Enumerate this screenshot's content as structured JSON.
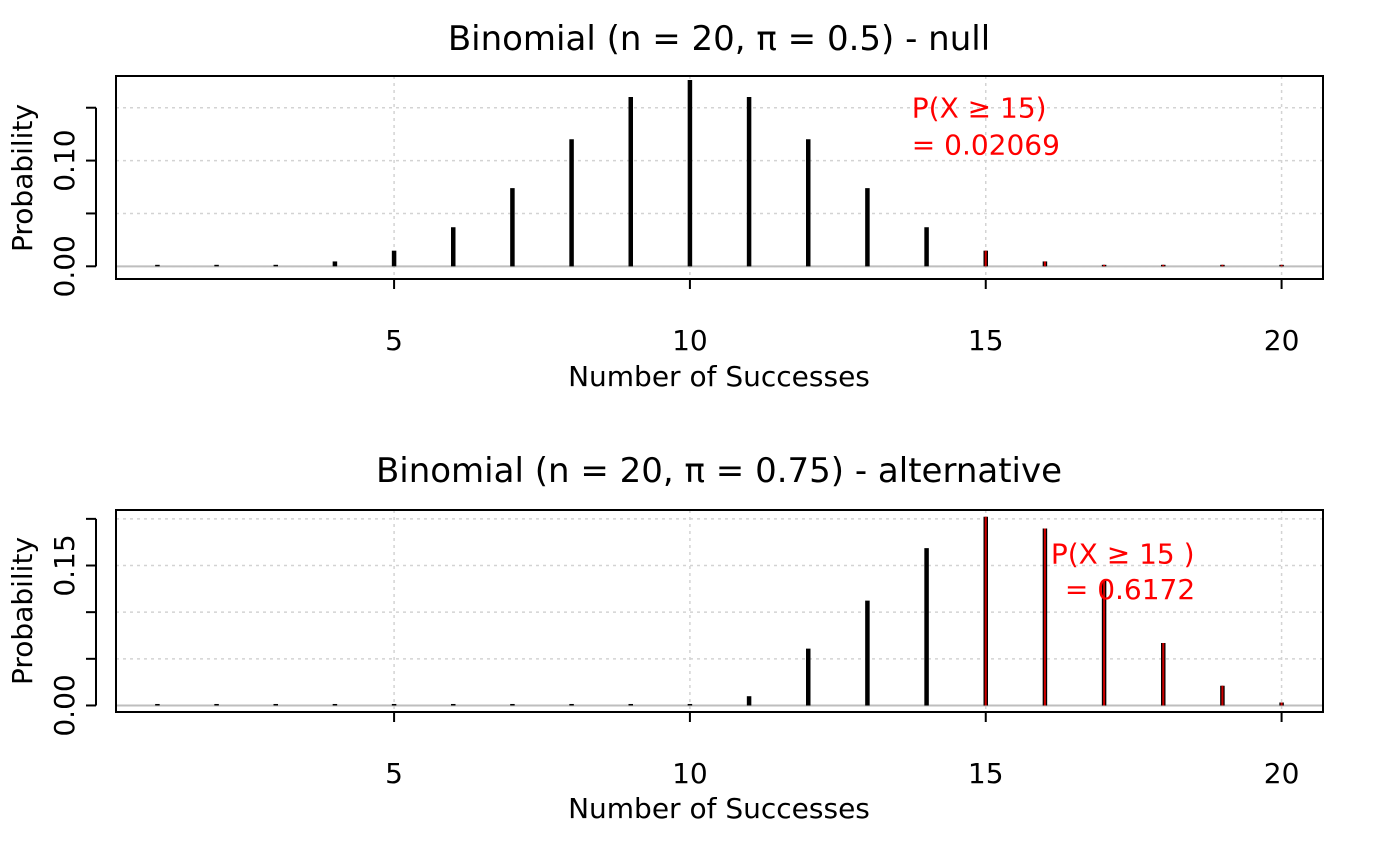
{
  "colors": {
    "spike": "#000000",
    "tail": "#ff0000",
    "tail_spike": "#cc0000",
    "annotation": "#ff0000",
    "grid": "#d3d3d3",
    "baseline": "#bebebe",
    "axis": "#000000"
  },
  "chart_data": [
    {
      "type": "bar",
      "bar_style": "spike",
      "title": "Binomial (n = 20, π = 0.5) - null",
      "xlabel": "Number of Successes",
      "ylabel": "Probability",
      "xlim": [
        0.3,
        20.7
      ],
      "ylim": [
        -0.012,
        0.18
      ],
      "x_ticks": [
        5,
        10,
        15,
        20
      ],
      "x_tick_labels": [
        "5",
        "10",
        "15",
        "20"
      ],
      "y_ticks": [
        0.0,
        0.05,
        0.1,
        0.15
      ],
      "y_tick_labels": [
        "0.00",
        "",
        "0.10",
        ""
      ],
      "grid": true,
      "tail_from": 15,
      "x": [
        1,
        2,
        3,
        4,
        5,
        6,
        7,
        8,
        9,
        10,
        11,
        12,
        13,
        14,
        15,
        16,
        17,
        18,
        19,
        20
      ],
      "values": [
        1.91e-05,
        0.000181,
        0.00109,
        0.00462,
        0.01479,
        0.03696,
        0.07393,
        0.12013,
        0.16018,
        0.1762,
        0.16018,
        0.12013,
        0.07393,
        0.03696,
        0.01479,
        0.00462,
        0.00109,
        0.000181,
        1.91e-05,
        9.5e-07
      ],
      "annotation": {
        "line1": "P(X ≥ 15)",
        "line2": "= 0.02069",
        "x": 13.75,
        "y_line1": 0.15,
        "y_line2": 0.115
      }
    },
    {
      "type": "bar",
      "bar_style": "spike",
      "title": "Binomial (n = 20, π = 0.75) - alternative",
      "xlabel": "Number of Successes",
      "ylabel": "Probability",
      "xlim": [
        0.3,
        20.7
      ],
      "ylim": [
        -0.007,
        0.2095
      ],
      "x_ticks": [
        5,
        10,
        15,
        20
      ],
      "x_tick_labels": [
        "5",
        "10",
        "15",
        "20"
      ],
      "y_ticks": [
        0.0,
        0.05,
        0.1,
        0.15,
        0.2
      ],
      "y_tick_labels": [
        "0.00",
        "",
        "",
        "0.15",
        ""
      ],
      "grid": true,
      "tail_from": 15,
      "x": [
        1,
        2,
        3,
        4,
        5,
        6,
        7,
        8,
        9,
        10,
        11,
        12,
        13,
        14,
        15,
        16,
        17,
        18,
        19,
        20
      ],
      "values": [
        0.0,
        0.0,
        1e-10,
        1.4e-09,
        1.4e-08,
        1.2e-07,
        8.7e-07,
        5.3e-06,
        2.9e-05,
        0.00099,
        0.00992,
        0.06088,
        0.11241,
        0.16861,
        0.20233,
        0.18968,
        0.1339,
        0.06695,
        0.02114,
        0.00317
      ],
      "annotation": {
        "line1": "P(X ≥ 15 )",
        "line2": "= 0.6172",
        "x": 16.1,
        "y_line1": 0.163,
        "y_line2": 0.125
      }
    }
  ]
}
